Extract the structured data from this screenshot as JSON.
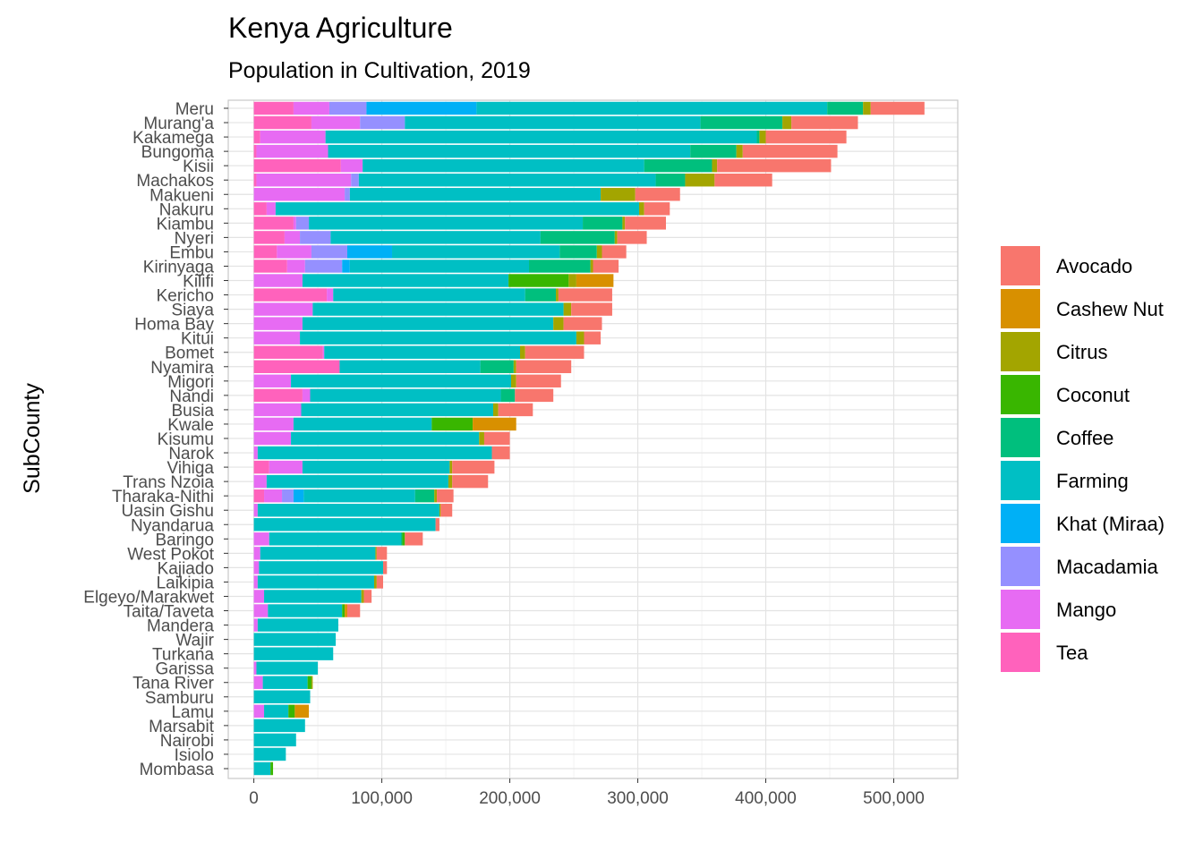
{
  "chart_data": {
    "type": "bar",
    "orientation": "horizontal",
    "stacked": true,
    "title": "Kenya Agriculture",
    "subtitle": "Population in Cultivation, 2019",
    "ylabel": "SubCounty",
    "xlabel": "",
    "xlim": [
      -20000,
      550000
    ],
    "xticks": [
      0,
      100000,
      200000,
      300000,
      400000,
      500000
    ],
    "xtick_labels": [
      "0",
      "100,000",
      "200,000",
      "300,000",
      "400,000",
      "500,000"
    ],
    "grid": true,
    "legend_position": "right",
    "stack_order": [
      "Tea",
      "Mango",
      "Macadamia",
      "Khat (Miraa)",
      "Farming",
      "Coffee",
      "Coconut",
      "Citrus",
      "Cashew Nut",
      "Avocado"
    ],
    "legend": [
      {
        "name": "Avocado",
        "color": "#F8766D"
      },
      {
        "name": "Cashew Nut",
        "color": "#D89000"
      },
      {
        "name": "Citrus",
        "color": "#A3A500"
      },
      {
        "name": "Coconut",
        "color": "#39B600"
      },
      {
        "name": "Coffee",
        "color": "#00BF7D"
      },
      {
        "name": "Farming",
        "color": "#00BFC4"
      },
      {
        "name": "Khat (Miraa)",
        "color": "#00B0F6"
      },
      {
        "name": "Macadamia",
        "color": "#9590FF"
      },
      {
        "name": "Mango",
        "color": "#E76BF3"
      },
      {
        "name": "Tea",
        "color": "#FF62BC"
      }
    ],
    "rows": [
      {
        "name": "Meru",
        "values": {
          "Tea": 31000,
          "Mango": 28000,
          "Macadamia": 29000,
          "Khat (Miraa)": 86000,
          "Farming": 274000,
          "Coffee": 28000,
          "Citrus": 6000,
          "Avocado": 42000
        }
      },
      {
        "name": "Murang'a",
        "values": {
          "Tea": 45000,
          "Mango": 38000,
          "Macadamia": 35000,
          "Farming": 231000,
          "Coffee": 64000,
          "Citrus": 7000,
          "Avocado": 52000
        }
      },
      {
        "name": "Kakamega",
        "values": {
          "Tea": 5000,
          "Mango": 51000,
          "Farming": 337000,
          "Coffee": 2000,
          "Citrus": 5000,
          "Avocado": 63000
        }
      },
      {
        "name": "Bungoma",
        "values": {
          "Tea": 2000,
          "Mango": 56000,
          "Farming": 283000,
          "Coffee": 36000,
          "Citrus": 5000,
          "Avocado": 74000
        }
      },
      {
        "name": "Kisii",
        "values": {
          "Tea": 68000,
          "Mango": 17000,
          "Farming": 220000,
          "Coffee": 53000,
          "Citrus": 4000,
          "Avocado": 89000
        }
      },
      {
        "name": "Machakos",
        "values": {
          "Tea": 2000,
          "Mango": 74000,
          "Macadamia": 6000,
          "Farming": 232000,
          "Coffee": 23000,
          "Citrus": 23000,
          "Avocado": 45000
        }
      },
      {
        "name": "Makueni",
        "values": {
          "Mango": 71000,
          "Macadamia": 4000,
          "Farming": 196000,
          "Citrus": 27000,
          "Avocado": 35000
        }
      },
      {
        "name": "Nakuru",
        "values": {
          "Tea": 10000,
          "Mango": 7000,
          "Farming": 284000,
          "Citrus": 4000,
          "Avocado": 20000
        }
      },
      {
        "name": "Kiambu",
        "values": {
          "Tea": 31000,
          "Mango": 2000,
          "Macadamia": 10000,
          "Farming": 214000,
          "Coffee": 31000,
          "Citrus": 2000,
          "Avocado": 32000
        }
      },
      {
        "name": "Nyeri",
        "values": {
          "Tea": 24000,
          "Mango": 12000,
          "Macadamia": 24000,
          "Farming": 164000,
          "Coffee": 58000,
          "Citrus": 2000,
          "Avocado": 23000
        }
      },
      {
        "name": "Embu",
        "values": {
          "Tea": 18000,
          "Mango": 27000,
          "Macadamia": 28000,
          "Khat (Miraa)": 35000,
          "Farming": 131000,
          "Coffee": 29000,
          "Citrus": 4000,
          "Avocado": 19000
        }
      },
      {
        "name": "Kirinyaga",
        "values": {
          "Tea": 26000,
          "Mango": 14000,
          "Macadamia": 29000,
          "Khat (Miraa)": 6000,
          "Farming": 140000,
          "Coffee": 48000,
          "Citrus": 2000,
          "Avocado": 20000
        }
      },
      {
        "name": "Kilifi",
        "values": {
          "Mango": 38000,
          "Farming": 161000,
          "Coconut": 47000,
          "Citrus": 6000,
          "Cashew Nut": 29000
        }
      },
      {
        "name": "Kericho",
        "values": {
          "Tea": 57000,
          "Mango": 5000,
          "Farming": 150000,
          "Coffee": 24000,
          "Citrus": 2000,
          "Avocado": 42000
        }
      },
      {
        "name": "Siaya",
        "values": {
          "Mango": 46000,
          "Farming": 196000,
          "Citrus": 6000,
          "Avocado": 32000
        }
      },
      {
        "name": "Homa Bay",
        "values": {
          "Mango": 38000,
          "Farming": 196000,
          "Citrus": 8000,
          "Avocado": 30000
        }
      },
      {
        "name": "Kitui",
        "values": {
          "Mango": 36000,
          "Farming": 216000,
          "Citrus": 6000,
          "Avocado": 13000
        }
      },
      {
        "name": "Bomet",
        "values": {
          "Tea": 54000,
          "Mango": 1000,
          "Farming": 153000,
          "Citrus": 4000,
          "Avocado": 46000
        }
      },
      {
        "name": "Nyamira",
        "values": {
          "Tea": 67000,
          "Farming": 110000,
          "Coffee": 26000,
          "Citrus": 2000,
          "Avocado": 43000
        }
      },
      {
        "name": "Migori",
        "values": {
          "Mango": 29000,
          "Farming": 172000,
          "Citrus": 4000,
          "Avocado": 35000
        }
      },
      {
        "name": "Nandi",
        "values": {
          "Tea": 38000,
          "Mango": 6000,
          "Farming": 149000,
          "Coffee": 11000,
          "Avocado": 30000
        }
      },
      {
        "name": "Busia",
        "values": {
          "Mango": 37000,
          "Farming": 150000,
          "Citrus": 4000,
          "Avocado": 27000
        }
      },
      {
        "name": "Kwale",
        "values": {
          "Mango": 31000,
          "Farming": 108000,
          "Coconut": 32000,
          "Cashew Nut": 34000
        }
      },
      {
        "name": "Kisumu",
        "values": {
          "Mango": 29000,
          "Farming": 147000,
          "Citrus": 4000,
          "Avocado": 20000
        }
      },
      {
        "name": "Narok",
        "values": {
          "Mango": 3000,
          "Farming": 183000,
          "Avocado": 14000
        }
      },
      {
        "name": "Vihiga",
        "values": {
          "Tea": 12000,
          "Mango": 26000,
          "Farming": 115000,
          "Citrus": 2000,
          "Avocado": 33000
        }
      },
      {
        "name": "Trans Nzoia",
        "values": {
          "Mango": 10000,
          "Farming": 142000,
          "Citrus": 3000,
          "Avocado": 28000
        }
      },
      {
        "name": "Tharaka-Nithi",
        "values": {
          "Tea": 8000,
          "Mango": 14000,
          "Macadamia": 9000,
          "Khat (Miraa)": 8000,
          "Farming": 87000,
          "Coffee": 15000,
          "Citrus": 2000,
          "Avocado": 13000
        }
      },
      {
        "name": "Uasin Gishu",
        "values": {
          "Mango": 3000,
          "Farming": 142000,
          "Citrus": 1000,
          "Avocado": 9000
        }
      },
      {
        "name": "Nyandarua",
        "values": {
          "Farming": 142000,
          "Avocado": 3000
        }
      },
      {
        "name": "Baringo",
        "values": {
          "Mango": 12000,
          "Farming": 103000,
          "Coffee": 1000,
          "Coconut": 2000,
          "Avocado": 14000
        }
      },
      {
        "name": "West Pokot",
        "values": {
          "Mango": 5000,
          "Farming": 90000,
          "Citrus": 1000,
          "Avocado": 8000
        }
      },
      {
        "name": "Kajiado",
        "values": {
          "Mango": 4000,
          "Farming": 97000,
          "Avocado": 3000
        }
      },
      {
        "name": "Laikipia",
        "values": {
          "Mango": 3000,
          "Farming": 91000,
          "Citrus": 2000,
          "Avocado": 5000
        }
      },
      {
        "name": "Elgeyo/Marakwet",
        "values": {
          "Mango": 8000,
          "Farming": 76000,
          "Citrus": 2000,
          "Avocado": 6000
        }
      },
      {
        "name": "Taita/Taveta",
        "values": {
          "Mango": 11000,
          "Farming": 58000,
          "Coconut": 2000,
          "Cashew Nut": 2000,
          "Avocado": 10000
        }
      },
      {
        "name": "Mandera",
        "values": {
          "Mango": 3000,
          "Farming": 63000
        }
      },
      {
        "name": "Wajir",
        "values": {
          "Farming": 64000
        }
      },
      {
        "name": "Turkana",
        "values": {
          "Farming": 62000
        }
      },
      {
        "name": "Garissa",
        "values": {
          "Mango": 2000,
          "Farming": 48000
        }
      },
      {
        "name": "Tana River",
        "values": {
          "Mango": 7000,
          "Farming": 35000,
          "Coconut": 3000,
          "Citrus": 1000
        }
      },
      {
        "name": "Samburu",
        "values": {
          "Farming": 44000
        }
      },
      {
        "name": "Lamu",
        "values": {
          "Mango": 8000,
          "Farming": 19000,
          "Coconut": 5000,
          "Cashew Nut": 11000
        }
      },
      {
        "name": "Marsabit",
        "values": {
          "Farming": 40000
        }
      },
      {
        "name": "Nairobi",
        "values": {
          "Farming": 33000
        }
      },
      {
        "name": "Isiolo",
        "values": {
          "Farming": 25000
        }
      },
      {
        "name": "Mombasa",
        "values": {
          "Farming": 13000,
          "Coconut": 2000
        }
      }
    ]
  }
}
